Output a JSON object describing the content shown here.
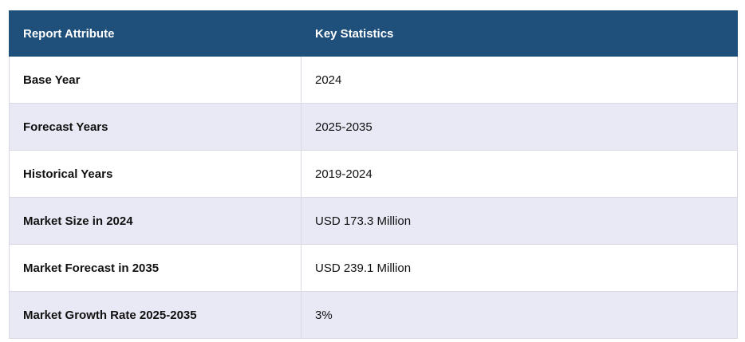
{
  "table": {
    "headers": [
      "Report Attribute",
      "Key Statistics"
    ],
    "rows": [
      [
        "Base Year",
        "2024"
      ],
      [
        "Forecast Years",
        "2025-2035"
      ],
      [
        "Historical Years",
        "2019-2024"
      ],
      [
        "Market Size in 2024",
        "USD 173.3 Million"
      ],
      [
        "Market Forecast in 2035",
        "USD 239.1 Million"
      ],
      [
        "Market Growth Rate 2025-2035",
        "3%"
      ]
    ]
  }
}
